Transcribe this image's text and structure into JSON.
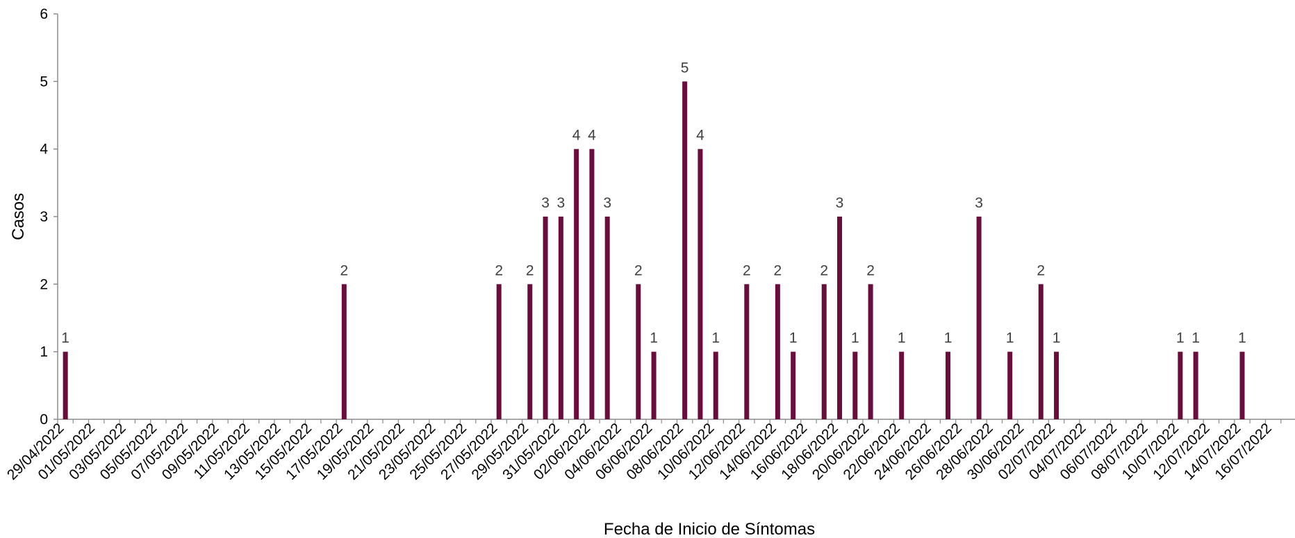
{
  "chart_data": {
    "type": "bar",
    "xlabel": "Fecha de Inicio de Síntomas",
    "ylabel": "Casos",
    "ylim": [
      0,
      6
    ],
    "yticks": [
      "0",
      "1",
      "2",
      "3",
      "4",
      "5",
      "6"
    ],
    "x_range": [
      "29/04/2022",
      "16/07/2022"
    ],
    "x_ticks": [
      "29/04/2022",
      "01/05/2022",
      "03/05/2022",
      "05/05/2022",
      "07/05/2022",
      "09/05/2022",
      "11/05/2022",
      "13/05/2022",
      "15/05/2022",
      "17/05/2022",
      "19/05/2022",
      "21/05/2022",
      "23/05/2022",
      "25/05/2022",
      "27/05/2022",
      "29/05/2022",
      "31/05/2022",
      "02/06/2022",
      "04/06/2022",
      "06/06/2022",
      "08/06/2022",
      "10/06/2022",
      "12/06/2022",
      "14/06/2022",
      "16/06/2022",
      "18/06/2022",
      "20/06/2022",
      "22/06/2022",
      "24/06/2022",
      "26/06/2022",
      "28/06/2022",
      "30/06/2022",
      "02/07/2022",
      "04/07/2022",
      "06/07/2022",
      "08/07/2022",
      "10/07/2022",
      "12/07/2022",
      "14/07/2022",
      "16/07/2022"
    ],
    "bar_color": "#6b0d3c",
    "grid": false,
    "legend": "none",
    "series": [
      {
        "points": [
          {
            "date": "29/04/2022",
            "value": 1
          },
          {
            "date": "17/05/2022",
            "value": 2
          },
          {
            "date": "27/05/2022",
            "value": 2
          },
          {
            "date": "29/05/2022",
            "value": 2
          },
          {
            "date": "30/05/2022",
            "value": 3
          },
          {
            "date": "31/05/2022",
            "value": 3
          },
          {
            "date": "01/06/2022",
            "value": 4
          },
          {
            "date": "02/06/2022",
            "value": 4
          },
          {
            "date": "03/06/2022",
            "value": 3
          },
          {
            "date": "05/06/2022",
            "value": 2
          },
          {
            "date": "06/06/2022",
            "value": 1
          },
          {
            "date": "08/06/2022",
            "value": 5
          },
          {
            "date": "09/06/2022",
            "value": 4
          },
          {
            "date": "10/06/2022",
            "value": 1
          },
          {
            "date": "12/06/2022",
            "value": 2
          },
          {
            "date": "14/06/2022",
            "value": 2
          },
          {
            "date": "15/06/2022",
            "value": 1
          },
          {
            "date": "17/06/2022",
            "value": 2
          },
          {
            "date": "18/06/2022",
            "value": 3
          },
          {
            "date": "19/06/2022",
            "value": 1
          },
          {
            "date": "20/06/2022",
            "value": 2
          },
          {
            "date": "22/06/2022",
            "value": 1
          },
          {
            "date": "25/06/2022",
            "value": 1
          },
          {
            "date": "27/06/2022",
            "value": 3
          },
          {
            "date": "29/06/2022",
            "value": 1
          },
          {
            "date": "01/07/2022",
            "value": 2
          },
          {
            "date": "02/07/2022",
            "value": 1
          },
          {
            "date": "10/07/2022",
            "value": 1
          },
          {
            "date": "11/07/2022",
            "value": 1
          },
          {
            "date": "14/07/2022",
            "value": 1
          }
        ]
      }
    ]
  }
}
